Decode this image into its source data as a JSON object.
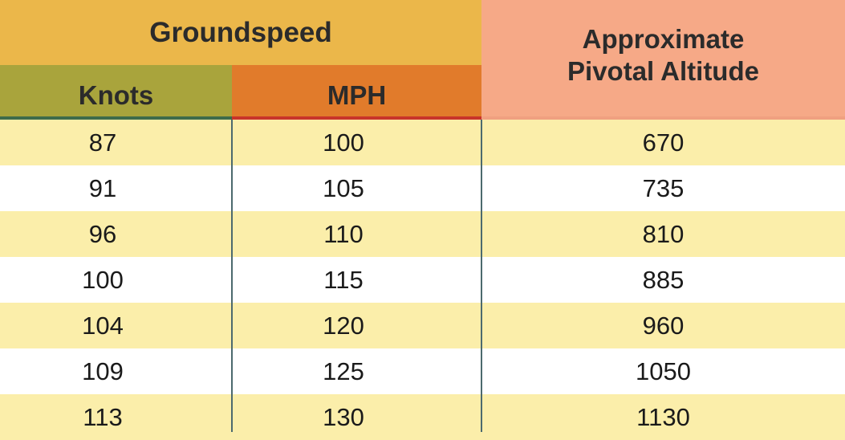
{
  "headers": {
    "groundspeed": "Groundspeed",
    "knots": "Knots",
    "mph": "MPH",
    "pivotal_line1": "Approximate",
    "pivotal_line2": "Pivotal Altitude"
  },
  "colors": {
    "groundspeed_header": "#ebb74a",
    "knots_header": "#a9a43c",
    "mph_header": "#e17b2b",
    "pivotal_header": "#f6a987",
    "row_shade": "#fbeeaa",
    "divider": "#4c6a6e"
  },
  "rows": [
    {
      "knots": "87",
      "mph": "100",
      "altitude": "670"
    },
    {
      "knots": "91",
      "mph": "105",
      "altitude": "735"
    },
    {
      "knots": "96",
      "mph": "110",
      "altitude": "810"
    },
    {
      "knots": "100",
      "mph": "115",
      "altitude": "885"
    },
    {
      "knots": "104",
      "mph": "120",
      "altitude": "960"
    },
    {
      "knots": "109",
      "mph": "125",
      "altitude": "1050"
    },
    {
      "knots": "113",
      "mph": "130",
      "altitude": "1130"
    }
  ]
}
